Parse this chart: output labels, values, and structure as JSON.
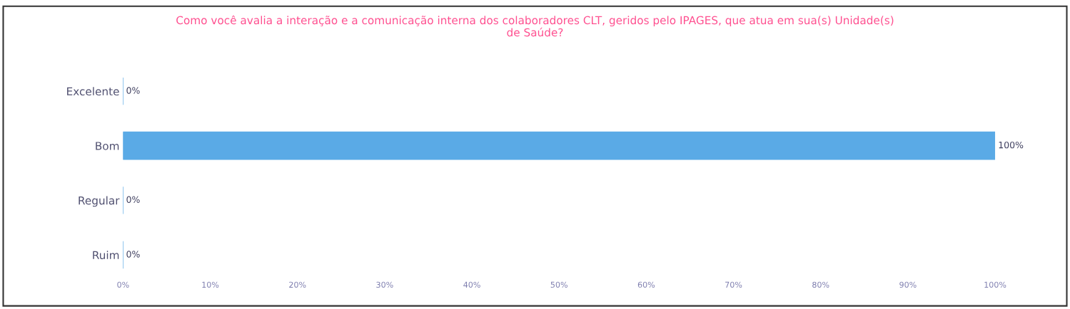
{
  "chart_data": {
    "type": "bar",
    "orientation": "horizontal",
    "title": "Como você avalia a interação e a comunicação interna dos colaboradores CLT, geridos pelo IPAGES, que atua em sua(s) Unidade(s)\nde Saúde?",
    "categories": [
      "Excelente",
      "Bom",
      "Regular",
      "Ruim"
    ],
    "values": [
      0,
      100,
      0,
      0
    ],
    "value_labels": [
      "0%",
      "100%",
      "0%",
      "0%"
    ],
    "color": "#5aaae6",
    "xlim": [
      0,
      100
    ],
    "xticks": [
      {
        "value": 0,
        "label": "0%"
      },
      {
        "value": 10,
        "label": "10%"
      },
      {
        "value": 20,
        "label": "20%"
      },
      {
        "value": 30,
        "label": "30%"
      },
      {
        "value": 40,
        "label": "40%"
      },
      {
        "value": 50,
        "label": "50%"
      },
      {
        "value": 60,
        "label": "60%"
      },
      {
        "value": 70,
        "label": "70%"
      },
      {
        "value": 80,
        "label": "80%"
      },
      {
        "value": 90,
        "label": "90%"
      },
      {
        "value": 100,
        "label": "100%"
      }
    ],
    "grid": false,
    "legend": false
  }
}
